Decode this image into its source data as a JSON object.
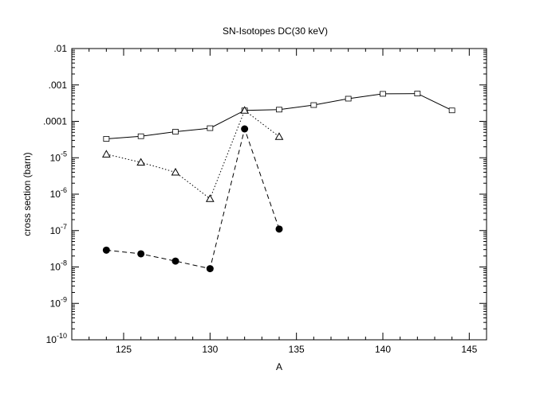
{
  "chart_data": {
    "type": "line",
    "title": "SN-Isotopes DC(30 keV)",
    "xlabel": "A",
    "ylabel": "cross section (barn)",
    "xlim": [
      122,
      146
    ],
    "ylim": [
      1e-10,
      0.01
    ],
    "yscale": "log",
    "x_ticks": [
      125,
      130,
      135,
      140,
      145
    ],
    "x_tick_labels": [
      "125",
      "130",
      "135",
      "140",
      "145"
    ],
    "y_tick_labels": [
      {
        "base": "",
        "exp": "",
        "plain": ".01"
      },
      {
        "base": "",
        "exp": "",
        "plain": ".001"
      },
      {
        "base": "",
        "exp": "",
        "plain": ".0001"
      },
      {
        "base": "10",
        "exp": "-5",
        "plain": ""
      },
      {
        "base": "10",
        "exp": "-6",
        "plain": ""
      },
      {
        "base": "10",
        "exp": "-7",
        "plain": ""
      },
      {
        "base": "10",
        "exp": "-8",
        "plain": ""
      },
      {
        "base": "10",
        "exp": "-9",
        "plain": ""
      },
      {
        "base": "10",
        "exp": "-10",
        "plain": ""
      }
    ],
    "y_tick_values": [
      0.01,
      0.001,
      0.0001,
      1e-05,
      1e-06,
      1e-07,
      1e-08,
      1e-09,
      1e-10
    ],
    "grid": false,
    "series": [
      {
        "marker": "square",
        "line": "solid",
        "x": [
          124,
          126,
          128,
          130,
          132,
          134,
          136,
          138,
          140,
          142,
          144
        ],
        "y": [
          3.3e-05,
          3.9e-05,
          5.2e-05,
          6.5e-05,
          0.0002,
          0.00021,
          0.00028,
          0.00042,
          0.00057,
          0.00058,
          0.0002
        ]
      },
      {
        "marker": "triangle",
        "line": "dotted",
        "x": [
          124,
          126,
          128,
          130,
          132,
          134
        ],
        "y": [
          1.25e-05,
          7.5e-06,
          4e-06,
          7.5e-07,
          0.0002,
          3.8e-05
        ]
      },
      {
        "marker": "circle",
        "line": "dashed",
        "x": [
          124,
          126,
          128,
          130,
          132,
          134
        ],
        "y": [
          2.9e-08,
          2.3e-08,
          1.45e-08,
          9e-09,
          6.2e-05,
          1.1e-07
        ]
      }
    ]
  }
}
